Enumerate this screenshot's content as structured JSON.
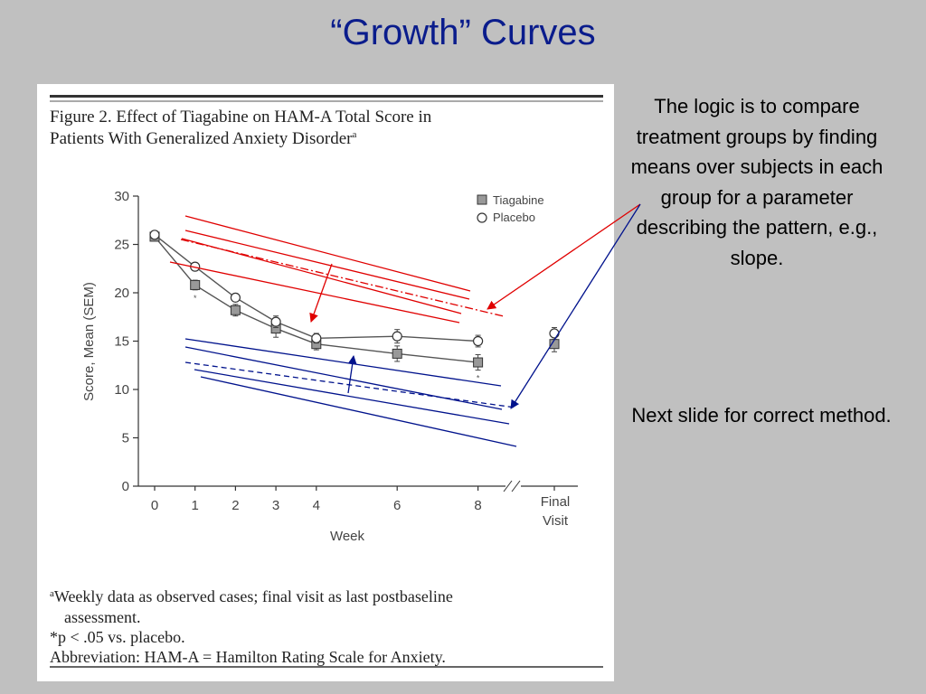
{
  "slide": {
    "title": "“Growth” Curves",
    "annotation": "The logic is to compare treatment groups by finding means over subjects in each group for a parameter describing the pattern, e.g., slope.",
    "next_note": "Next slide for correct method."
  },
  "figure": {
    "caption_line1": "Figure 2. Effect of Tiagabine on HAM-A Total Score in",
    "caption_line2": "Patients With Generalized Anxiety Disorder",
    "caption_sup": "a",
    "final_label_1": "Final",
    "final_label_2": "Visit",
    "footnote_a_sup": "a",
    "footnote_a_line1": "Weekly data as observed cases; final visit as last postbaseline",
    "footnote_a_line2": "assessment.",
    "footnote_p": "*p < .05 vs. placebo.",
    "footnote_abbrev": "Abbreviation: HAM-A = Hamilton Rating Scale for Anxiety."
  },
  "chart_data": {
    "type": "line",
    "xlabel": "Week",
    "ylabel": "Score, Mean (SEM)",
    "ylim": [
      0,
      30
    ],
    "y_ticks": [
      "0",
      "5",
      "10",
      "15",
      "20",
      "25",
      "30"
    ],
    "x_ticks": [
      "0",
      "1",
      "2",
      "3",
      "4",
      "6",
      "8"
    ],
    "legend": [
      "Tiagabine",
      "Placebo"
    ],
    "legend_position": "top-right",
    "series": [
      {
        "name": "Tiagabine",
        "marker": "square",
        "x": [
          0,
          1,
          2,
          3,
          4,
          6,
          8
        ],
        "y": [
          25.8,
          20.8,
          18.2,
          16.3,
          14.7,
          13.7,
          12.8
        ],
        "sem": [
          0.4,
          0.5,
          0.6,
          0.9,
          0.6,
          0.8,
          0.8
        ],
        "significant": [
          false,
          true,
          false,
          false,
          false,
          false,
          true
        ],
        "final_visit": 14.7,
        "final_visit_sem": 0.8
      },
      {
        "name": "Placebo",
        "marker": "circle",
        "x": [
          0,
          1,
          2,
          3,
          4,
          6,
          8
        ],
        "y": [
          26.0,
          22.7,
          19.5,
          17.0,
          15.3,
          15.5,
          15.0
        ],
        "sem": [
          0.3,
          0.3,
          0.4,
          0.6,
          0.5,
          0.7,
          0.6
        ],
        "final_visit": 15.8,
        "final_visit_sem": 0.6
      }
    ],
    "significance_marker": "*",
    "colors": {
      "red_lines": "#e00000",
      "blue_lines": "#00128c"
    }
  }
}
